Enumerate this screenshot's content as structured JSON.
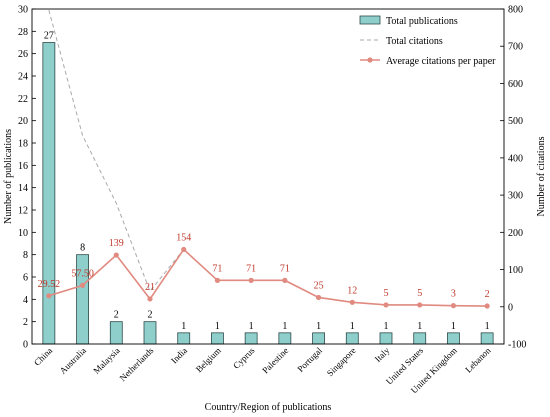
{
  "chart_data": {
    "type": "bar",
    "categories": [
      "China",
      "Australia",
      "Malaysia",
      "Netherlands",
      "India",
      "Belgium",
      "Cyprus",
      "Palestine",
      "Portugal",
      "Singapore",
      "Italy",
      "United States",
      "United Kingdom",
      "Lebanon"
    ],
    "xlabel": "Country/Region of publications",
    "ylabel": "Number of publications",
    "y2label": "Number of citations",
    "ylim": [
      0,
      30
    ],
    "y2lim": [
      -100,
      800
    ],
    "yticks": [
      0,
      2,
      4,
      6,
      8,
      10,
      12,
      14,
      16,
      18,
      20,
      22,
      24,
      26,
      28,
      30
    ],
    "y2ticks": [
      -100,
      0,
      100,
      200,
      300,
      400,
      500,
      600,
      700,
      800
    ],
    "legend_position": "top-right",
    "series": [
      {
        "name": "Total publications",
        "kind": "bar",
        "axis": "left",
        "color": "#8ecfcb",
        "values": [
          27,
          8,
          2,
          2,
          1,
          1,
          1,
          1,
          1,
          1,
          1,
          1,
          1,
          1
        ],
        "labels": [
          "27",
          "8",
          "2",
          "2",
          "1",
          "1",
          "1",
          "1",
          "1",
          "1",
          "1",
          "1",
          "1",
          "1"
        ]
      },
      {
        "name": "Total citations",
        "kind": "dashed-line",
        "axis": "right",
        "color": "#a9a9a9",
        "values": [
          797,
          460,
          278,
          42,
          154,
          71,
          71,
          71,
          25,
          12,
          5,
          5,
          3,
          2
        ]
      },
      {
        "name": "Average citations per paper",
        "kind": "line-markers",
        "axis": "right",
        "color": "#e08a80",
        "values": [
          29.52,
          57.5,
          139,
          21,
          154,
          71,
          71,
          71,
          25,
          12,
          5,
          5,
          3,
          2
        ],
        "labels": [
          "29.52",
          "57.50",
          "139",
          "21",
          "154",
          "71",
          "71",
          "71",
          "25",
          "12",
          "5",
          "5",
          "3",
          "2"
        ]
      }
    ]
  }
}
